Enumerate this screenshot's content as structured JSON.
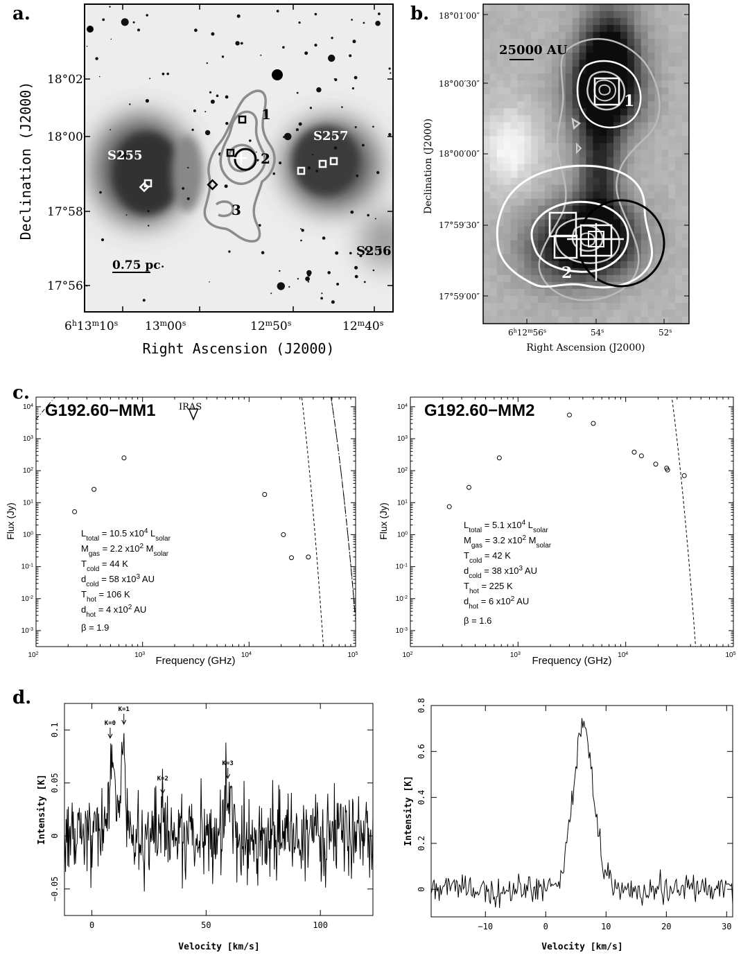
{
  "panel_labels": {
    "a": "a.",
    "b": "b.",
    "c": "c.",
    "d": "d."
  },
  "chart_data": [
    {
      "panel": "a",
      "type": "scatter",
      "xlabel": "Right Ascension (J2000)",
      "ylabel": "Declination (J2000)",
      "xticks": [
        {
          "h": "6",
          "hs": "h",
          "m": "13",
          "ms": "m",
          "s": "10",
          "ss": "s"
        },
        {
          "m": "13",
          "ms": "m",
          "s": "00",
          "ss": "s"
        },
        {
          "m": "12",
          "ms": "m",
          "s": "50",
          "ss": "s"
        },
        {
          "m": "12",
          "ms": "m",
          "s": "40",
          "ss": "s"
        }
      ],
      "yticks": [
        "18°02′",
        "18°00′",
        "17°58′",
        "17°56′"
      ],
      "region_labels": [
        "S255",
        "S257",
        "S256"
      ],
      "source_numbers": [
        "1",
        "2",
        "3"
      ],
      "scale_bar": "0.75 pc"
    },
    {
      "panel": "b",
      "type": "heatmap",
      "xlabel": "Right Ascension (J2000)",
      "ylabel": "Declination (J2000)",
      "xticks": [
        {
          "h": "6",
          "hs": "h",
          "m": "12",
          "ms": "m",
          "s": "56",
          "ss": "s"
        },
        {
          "s": "54",
          "ss": "s"
        },
        {
          "s": "52",
          "ss": "s"
        }
      ],
      "yticks": [
        "18°01′00″",
        "18°00′30″",
        "18°00′00″",
        "17°59′30″",
        "17°59′00″"
      ],
      "source_numbers": [
        "1",
        "2"
      ],
      "scale_bar": "25000 AU"
    },
    {
      "panel": "c-left",
      "type": "line",
      "title": "G192.60−MM1",
      "xlabel": "Frequency (GHz)",
      "ylabel": "Flux (Jy)",
      "xscale": "log",
      "yscale": "log",
      "xlim": [
        100,
        100000
      ],
      "ylim": [
        0.0003,
        20000
      ],
      "xtick_labels": [
        {
          "b": "10",
          "e": "2"
        },
        {
          "b": "10",
          "e": "3"
        },
        {
          "b": "10",
          "e": "4"
        },
        {
          "b": "10",
          "e": "5"
        }
      ],
      "ytick_labels": [
        {
          "b": "10",
          "e": "4"
        },
        {
          "b": "10",
          "e": "3"
        },
        {
          "b": "10",
          "e": "2"
        },
        {
          "b": "10",
          "e": "1"
        },
        {
          "b": "10",
          "e": "0"
        },
        {
          "b": "10",
          "e": "-1"
        },
        {
          "b": "10",
          "e": "-2"
        },
        {
          "b": "10",
          "e": "-3"
        }
      ],
      "points_x": [
        230,
        350,
        670,
        14000,
        21000,
        25000,
        36000
      ],
      "points_y": [
        5.2,
        26,
        250,
        18,
        1.0,
        0.19,
        0.2
      ],
      "upper_limit": {
        "label": "IRAS",
        "x": 3000,
        "y": 6000
      },
      "cold": {
        "A": 0.00118,
        "T": 44,
        "beta": 1.9
      },
      "hot": {
        "A": 3e-08,
        "T": 106,
        "beta": 1.9
      },
      "params": [
        {
          "sym": "L",
          "sub": "total",
          "val": " = 10.5 x10",
          "sup": "4",
          "unit": " L",
          "usub": "solar"
        },
        {
          "sym": "M",
          "sub": "gas",
          "val": " = 2.2 x10",
          "sup": "2",
          "unit": " M",
          "usub": "solar"
        },
        {
          "sym": "T",
          "sub": "cold",
          "val": " = 44 K"
        },
        {
          "sym": "d",
          "sub": "cold",
          "val": " = 58 x10",
          "sup": "3",
          "unit": " AU"
        },
        {
          "sym": "T",
          "sub": "hot",
          "val": " = 106 K"
        },
        {
          "sym": "d",
          "sub": "hot",
          "val": " = 4 x10",
          "sup": "2",
          "unit": " AU"
        },
        {
          "sym": "β",
          "val": " = 1.9"
        }
      ]
    },
    {
      "panel": "c-right",
      "type": "line",
      "title": "G192.60−MM2",
      "xlabel": "Frequency (GHz)",
      "ylabel": "Flux (Jy)",
      "xscale": "log",
      "yscale": "log",
      "xlim": [
        100,
        100000
      ],
      "ylim": [
        0.0003,
        20000
      ],
      "xtick_labels": [
        {
          "b": "10",
          "e": "2"
        },
        {
          "b": "10",
          "e": "3"
        },
        {
          "b": "10",
          "e": "4"
        },
        {
          "b": "10",
          "e": "5"
        }
      ],
      "ytick_labels": [
        {
          "b": "10",
          "e": "4"
        },
        {
          "b": "10",
          "e": "3"
        },
        {
          "b": "10",
          "e": "2"
        },
        {
          "b": "10",
          "e": "1"
        },
        {
          "b": "10",
          "e": "0"
        },
        {
          "b": "10",
          "e": "-1"
        },
        {
          "b": "10",
          "e": "-2"
        },
        {
          "b": "10",
          "e": "-3"
        }
      ],
      "points_x": [
        230,
        350,
        670,
        3000,
        5000,
        12000,
        14000,
        19000,
        24000,
        24500,
        35000
      ],
      "points_y": [
        7.5,
        30,
        250,
        5500,
        3000,
        380,
        290,
        160,
        120,
        105,
        70
      ],
      "cold": {
        "A": 0.00174,
        "T": 42,
        "beta": 1.6
      },
      "hot": {
        "A": 1.2e-05,
        "T": 225,
        "beta": 1.6
      },
      "params": [
        {
          "sym": "L",
          "sub": "total",
          "val": " = 5.1 x10",
          "sup": "4",
          "unit": " L",
          "usub": "solar"
        },
        {
          "sym": "M",
          "sub": "gas",
          "val": " = 3.2 x10",
          "sup": "2",
          "unit": " M",
          "usub": "solar"
        },
        {
          "sym": "T",
          "sub": "cold",
          "val": " = 42 K"
        },
        {
          "sym": "d",
          "sub": "cold",
          "val": " = 38 x10",
          "sup": "3",
          "unit": " AU"
        },
        {
          "sym": "T",
          "sub": "hot",
          "val": " = 225 K"
        },
        {
          "sym": "d",
          "sub": "hot",
          "val": " = 6 x10",
          "sup": "2",
          "unit": " AU"
        },
        {
          "sym": "β",
          "val": " = 1.6"
        }
      ]
    },
    {
      "panel": "d-left",
      "type": "line",
      "xlabel": "Velocity  [km/s]",
      "ylabel": "Intensity [K]",
      "xlim": [
        -12,
        123
      ],
      "ylim": [
        -0.075,
        0.125
      ],
      "xticks": [
        0,
        50,
        100
      ],
      "yticks": [
        -0.05,
        0,
        0.05,
        0.1
      ],
      "ytick_labels": [
        "−0.05",
        "0",
        "0.05",
        "0.1"
      ],
      "noise_rms": 0.02,
      "lines": [
        {
          "center": 8.5,
          "height": 0.072,
          "width": 1.3
        },
        {
          "center": 13.5,
          "height": 0.08,
          "width": 1.2
        },
        {
          "center": 31,
          "height": 0.03,
          "width": 1.2
        },
        {
          "center": 59.5,
          "height": 0.038,
          "width": 1.4
        }
      ],
      "annotations": [
        {
          "label": "K=0",
          "x": 8
        },
        {
          "label": "K=1",
          "x": 14
        },
        {
          "label": "K=2",
          "x": 31
        },
        {
          "label": "K=3",
          "x": 59.5
        }
      ]
    },
    {
      "panel": "d-right",
      "type": "line",
      "xlabel": "Velocity  [km/s]",
      "ylabel": "Intensity [K]",
      "xlim": [
        -19,
        31
      ],
      "ylim": [
        -0.12,
        0.8
      ],
      "xticks": [
        -10,
        0,
        10,
        20,
        30
      ],
      "xtick_labels": [
        "−10",
        "0",
        "10",
        "20",
        "30"
      ],
      "yticks": [
        0,
        0.2,
        0.4,
        0.6,
        0.8
      ],
      "ytick_labels": [
        "0",
        "0.2",
        "0.4",
        "0.6",
        "0.8"
      ],
      "noise_rms": 0.03,
      "peak": {
        "center": 6.2,
        "height": 0.68,
        "width": 1.6
      }
    }
  ]
}
